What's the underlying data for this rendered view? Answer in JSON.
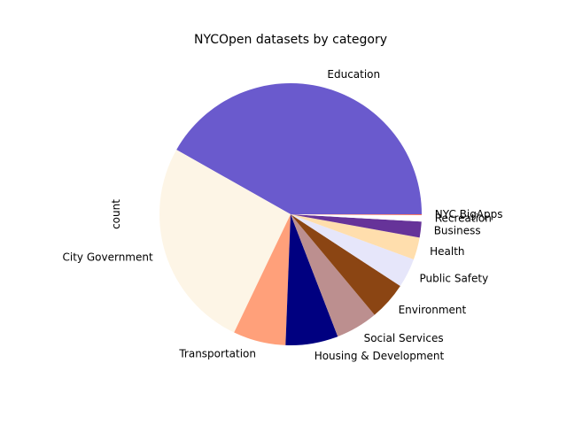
{
  "chart_data": {
    "type": "pie",
    "title": "NYCOpen datasets by category",
    "ylabel": "count",
    "slices": [
      {
        "label": "Education",
        "value": 42.6,
        "color": "#6a5acd"
      },
      {
        "label": "City Government",
        "value": 26.6,
        "color": "#fdf5e6"
      },
      {
        "label": "Transportation",
        "value": 6.6,
        "color": "#ffa07a"
      },
      {
        "label": "Housing & Development",
        "value": 6.6,
        "color": "#000080"
      },
      {
        "label": "Social Services",
        "value": 5.3,
        "color": "#bc8f8f"
      },
      {
        "label": "Environment",
        "value": 4.8,
        "color": "#8b4513"
      },
      {
        "label": "Public Safety",
        "value": 3.7,
        "color": "#e6e6fa"
      },
      {
        "label": "Health",
        "value": 2.8,
        "color": "#ffdead"
      },
      {
        "label": "Business",
        "value": 2.0,
        "color": "#663399"
      },
      {
        "label": "Recreation",
        "value": 0.8,
        "color": "#ffffff"
      },
      {
        "label": "NYC BigApps",
        "value": 0.1,
        "color": "#ff6347"
      }
    ],
    "start_angle_deg": 0,
    "direction": "counterclockwise"
  }
}
